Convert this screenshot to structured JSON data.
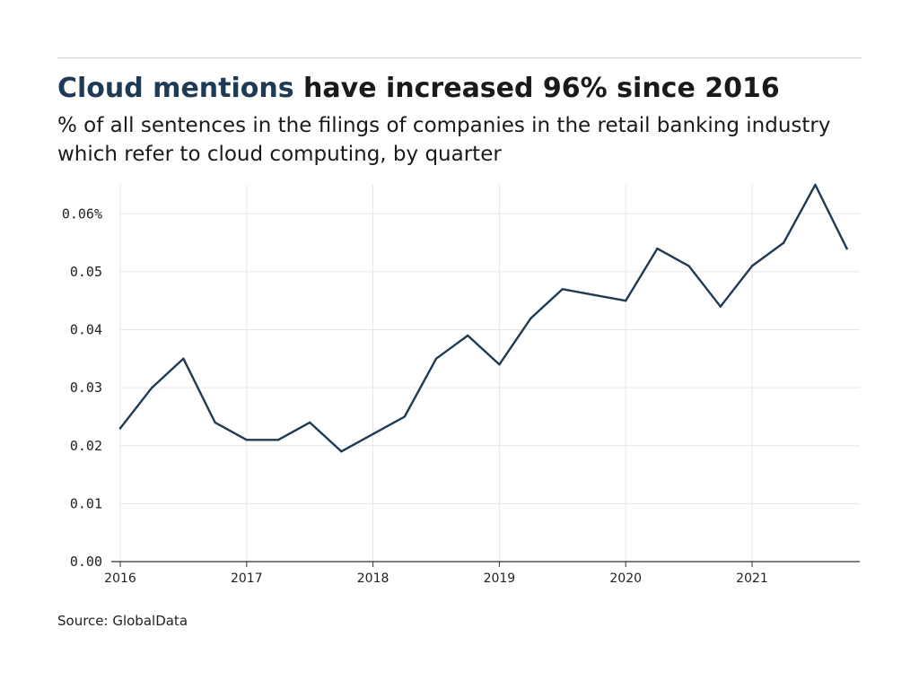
{
  "header": {
    "title_highlight": "Cloud mentions",
    "title_rest": " have increased 96% since 2016",
    "subtitle": "% of all sentences in the filings of companies in the retail banking industry which refer to cloud computing, by quarter"
  },
  "footer": {
    "source": "Source: GlobalData"
  },
  "colors": {
    "line": "#1f3a55",
    "title_highlight": "#1f3a55",
    "grid": "#e6e6e6",
    "axis": "#333333"
  },
  "chart_data": {
    "type": "line",
    "title": "Cloud mentions have increased 96% since 2016",
    "subtitle": "% of all sentences in the filings of companies in the retail banking industry which refer to cloud computing, by quarter",
    "xlabel": "",
    "ylabel": "",
    "x": [
      "2016 Q1",
      "2016 Q2",
      "2016 Q3",
      "2016 Q4",
      "2017 Q1",
      "2017 Q2",
      "2017 Q3",
      "2017 Q4",
      "2018 Q1",
      "2018 Q2",
      "2018 Q3",
      "2018 Q4",
      "2019 Q1",
      "2019 Q2",
      "2019 Q3",
      "2019 Q4",
      "2020 Q1",
      "2020 Q2",
      "2020 Q3",
      "2020 Q4",
      "2021 Q1",
      "2021 Q2",
      "2021 Q3",
      "2021 Q4"
    ],
    "series": [
      {
        "values": [
          0.023,
          0.03,
          0.035,
          0.024,
          0.021,
          0.021,
          0.024,
          0.019,
          0.022,
          0.025,
          0.035,
          0.039,
          0.034,
          0.042,
          0.047,
          0.046,
          0.045,
          0.054,
          0.051,
          0.044,
          0.051,
          0.055,
          0.065,
          0.054
        ]
      }
    ],
    "ylim": [
      0,
      0.065
    ],
    "yticks": [
      0.0,
      0.01,
      0.02,
      0.03,
      0.04,
      0.05,
      0.06
    ],
    "ytick_labels": [
      "0.00",
      "0.01",
      "0.02",
      "0.03",
      "0.04",
      "0.05",
      "0.06%"
    ],
    "xtick_labels": [
      "2016",
      "2017",
      "2018",
      "2019",
      "2020",
      "2021"
    ],
    "grid": true,
    "legend": "none"
  }
}
